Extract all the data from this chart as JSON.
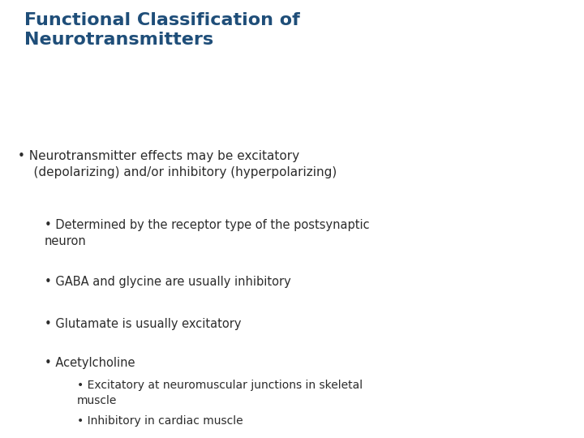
{
  "title_line1": "Functional Classification of",
  "title_line2": "Neurotransmitters",
  "title_color": "#1f4e79",
  "title_fontsize": 16,
  "body_fontsize": 11,
  "sub_fontsize": 10.5,
  "subsub_fontsize": 10,
  "body_color": "#2c2c2c",
  "background_color": "#ffffff",
  "bullet1": "Neurotransmitter effects may be excitatory\n(depolarizing) and/or inhibitory (hyperpolarizing)",
  "sub_bullets": [
    "Determined by the receptor type of the postsynaptic\nneuron",
    "GABA and glycine are usually inhibitory",
    "Glutamate is usually excitatory",
    "Acetylcholine"
  ],
  "subsub_bullets": [
    "Excitatory at neuromuscular junctions in skeletal\nmuscle",
    "Inhibitory in cardiac muscle"
  ]
}
